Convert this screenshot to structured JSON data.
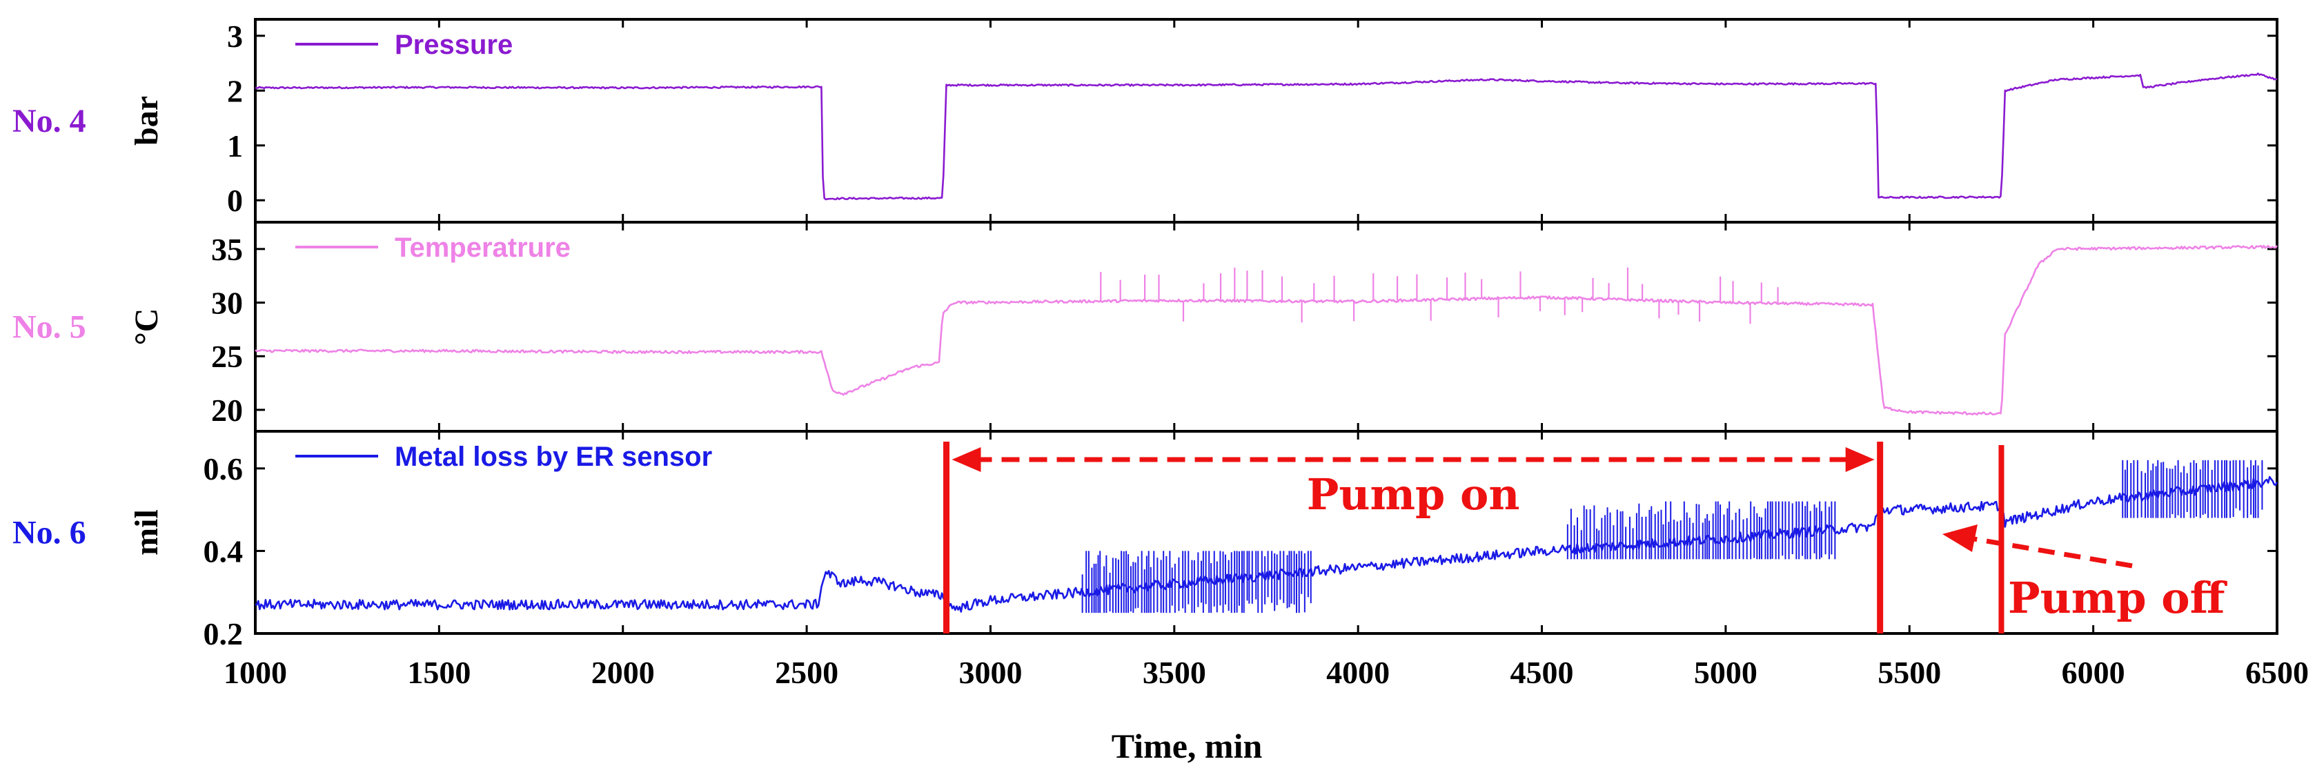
{
  "chart_data": {
    "type": "line",
    "xlabel": "Time, min",
    "xlim": [
      1000,
      6500
    ],
    "xticks": [
      1000,
      1500,
      2000,
      2500,
      3000,
      3500,
      4000,
      4500,
      5000,
      5500,
      6000,
      6500
    ],
    "panels": [
      {
        "row_label": "No. 4",
        "ylabel": "bar",
        "legend": "Pressure",
        "color": "#8a1ad0",
        "ylim": [
          -0.4,
          3.3
        ],
        "yticks": [
          0,
          1,
          2,
          3
        ],
        "points": [
          [
            1000,
            2.05
          ],
          [
            1500,
            2.06
          ],
          [
            2000,
            2.05
          ],
          [
            2540,
            2.07
          ],
          [
            2545,
            0.03
          ],
          [
            2870,
            0.04
          ],
          [
            2880,
            2.1
          ],
          [
            3500,
            2.1
          ],
          [
            4000,
            2.12
          ],
          [
            4350,
            2.2
          ],
          [
            4700,
            2.14
          ],
          [
            5000,
            2.12
          ],
          [
            5410,
            2.13
          ],
          [
            5415,
            0.05
          ],
          [
            5750,
            0.06
          ],
          [
            5760,
            2.0
          ],
          [
            5900,
            2.2
          ],
          [
            6130,
            2.28
          ],
          [
            6135,
            2.05
          ],
          [
            6300,
            2.2
          ],
          [
            6450,
            2.3
          ],
          [
            6500,
            2.2
          ]
        ]
      },
      {
        "row_label": "No. 5",
        "ylabel": "°C",
        "legend": "Temperatrure",
        "color": "#ee82e6",
        "ylim": [
          18,
          37.5
        ],
        "yticks": [
          20,
          25,
          30,
          35
        ],
        "points": [
          [
            1000,
            25.5
          ],
          [
            1500,
            25.5
          ],
          [
            2000,
            25.4
          ],
          [
            2540,
            25.4
          ],
          [
            2570,
            21.8
          ],
          [
            2600,
            21.5
          ],
          [
            2700,
            22.8
          ],
          [
            2790,
            24.0
          ],
          [
            2860,
            24.4
          ],
          [
            2870,
            29.0
          ],
          [
            2900,
            30.0
          ],
          [
            3500,
            30.2
          ],
          [
            4000,
            30.1
          ],
          [
            4500,
            30.5
          ],
          [
            5000,
            30.0
          ],
          [
            5400,
            29.8
          ],
          [
            5430,
            20.2
          ],
          [
            5500,
            19.8
          ],
          [
            5750,
            19.6
          ],
          [
            5760,
            27.0
          ],
          [
            5850,
            33.5
          ],
          [
            5900,
            35.0
          ],
          [
            6200,
            35.1
          ],
          [
            6500,
            35.2
          ]
        ],
        "spike_range": [
          3300,
          5150
        ],
        "spike_low": 28.5,
        "spike_high": 32.5
      },
      {
        "row_label": "No. 6",
        "ylabel": "mil",
        "legend": "Metal loss by ER sensor",
        "color": "#1a1ae6",
        "ylim": [
          0.2,
          0.69
        ],
        "yticks": [
          0.2,
          0.4,
          0.6
        ],
        "points": [
          [
            1000,
            0.27
          ],
          [
            1500,
            0.27
          ],
          [
            2000,
            0.27
          ],
          [
            2530,
            0.27
          ],
          [
            2550,
            0.35
          ],
          [
            2600,
            0.32
          ],
          [
            2650,
            0.33
          ],
          [
            2720,
            0.32
          ],
          [
            2800,
            0.3
          ],
          [
            2880,
            0.29
          ],
          [
            2900,
            0.26
          ],
          [
            3000,
            0.28
          ],
          [
            3500,
            0.32
          ],
          [
            4000,
            0.36
          ],
          [
            4500,
            0.4
          ],
          [
            5000,
            0.43
          ],
          [
            5400,
            0.46
          ],
          [
            5420,
            0.5
          ],
          [
            5500,
            0.5
          ],
          [
            5750,
            0.51
          ],
          [
            5760,
            0.47
          ],
          [
            6000,
            0.52
          ],
          [
            6500,
            0.57
          ]
        ],
        "burst_ranges": [
          [
            3250,
            3880,
            0.25,
            0.4
          ],
          [
            4570,
            5300,
            0.38,
            0.52
          ],
          [
            6080,
            6460,
            0.48,
            0.62
          ]
        ],
        "annotations": {
          "pump_on_label": "Pump on",
          "pump_off_label": "Pump off",
          "pump_on_start": 2880,
          "pump_on_end": 5420,
          "pump_off_marker": 5750
        }
      }
    ]
  }
}
